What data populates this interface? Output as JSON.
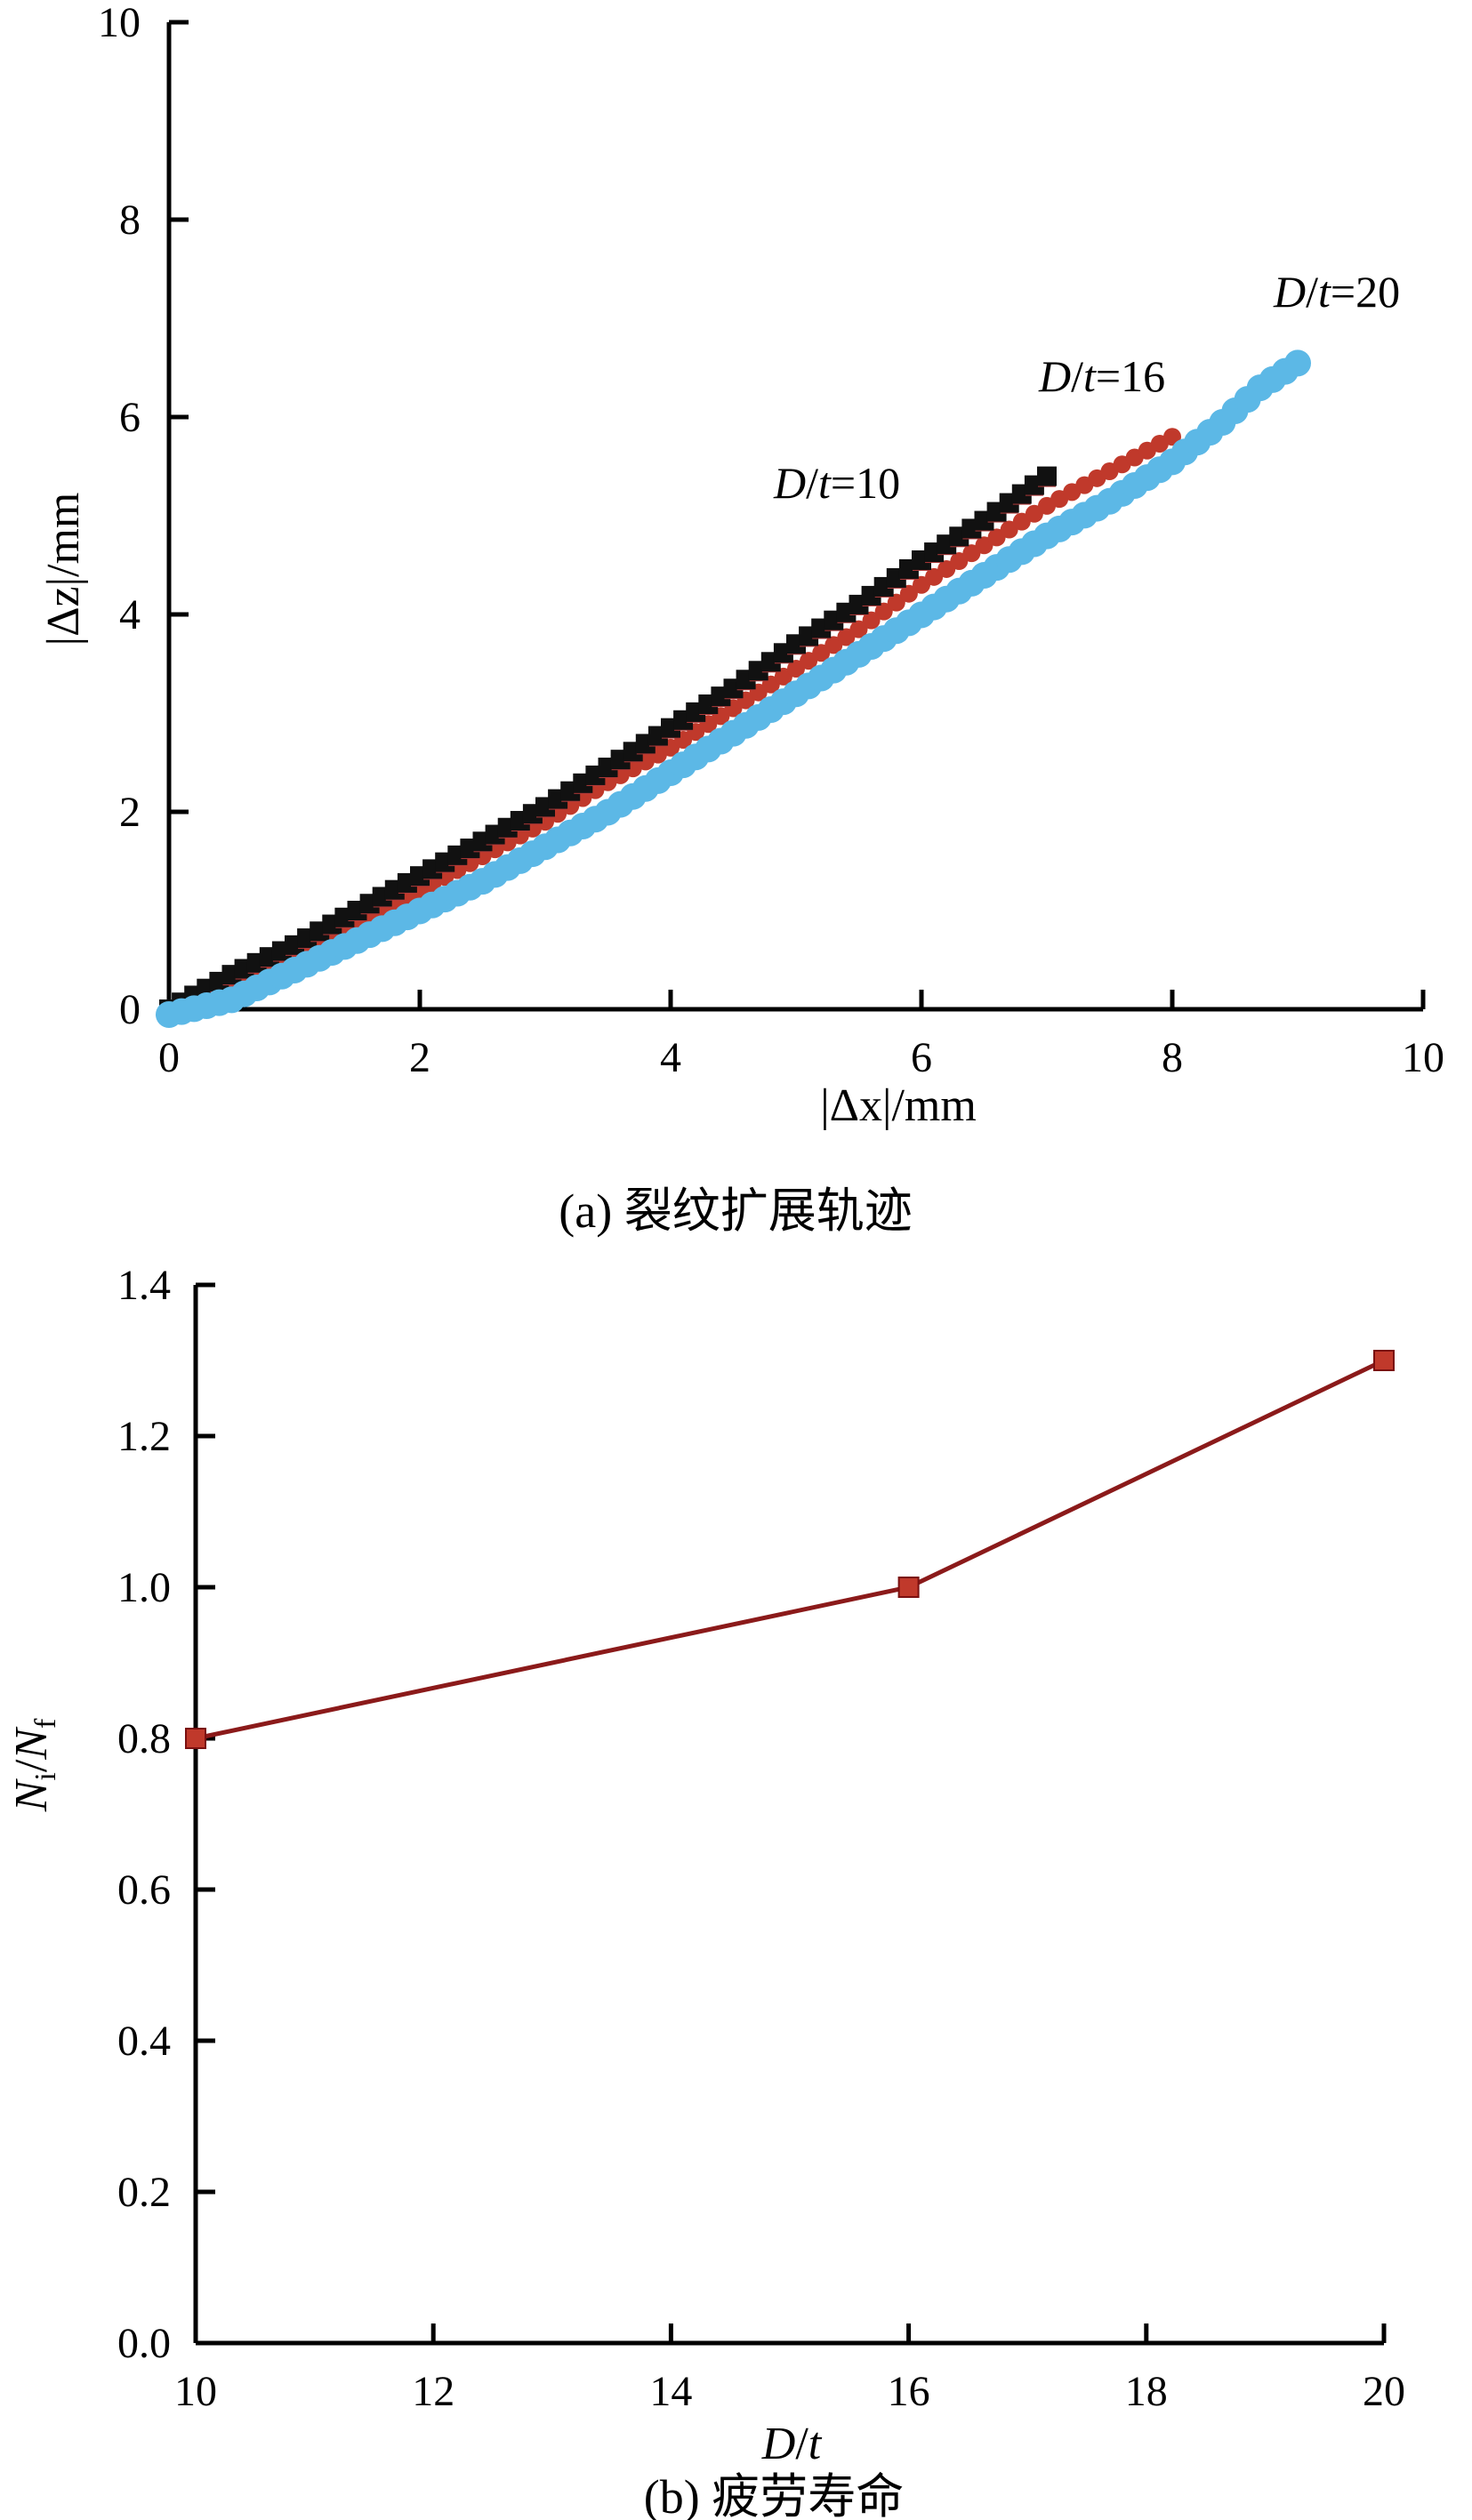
{
  "chart_data": [
    {
      "type": "scatter",
      "title": "",
      "caption": "(a) 裂纹扩展轨迹",
      "xlabel": "|Δx|/mm",
      "ylabel": "|Δz|/mm",
      "xlim": [
        0,
        10
      ],
      "ylim": [
        0,
        10
      ],
      "xticks": [
        "0",
        "2",
        "4",
        "6",
        "8",
        "10"
      ],
      "yticks": [
        "0",
        "2",
        "4",
        "6",
        "8",
        "10"
      ],
      "grid": false,
      "series": [
        {
          "name": "D/t=10",
          "label_parts": {
            "a": "D",
            "b": "/",
            "c": "t",
            "d": "=10"
          },
          "color": "#111111",
          "secondary_color": "#b23a3a",
          "marker": "square",
          "x": [
            0,
            0.5,
            1,
            1.5,
            2,
            2.5,
            3,
            3.5,
            4,
            4.5,
            5,
            5.5,
            6,
            6.5,
            7
          ],
          "y": [
            0,
            0.35,
            0.65,
            1.0,
            1.35,
            1.7,
            2.05,
            2.45,
            2.85,
            3.25,
            3.7,
            4.1,
            4.55,
            4.95,
            5.4
          ]
        },
        {
          "name": "D/t=16",
          "label_parts": {
            "a": "D",
            "b": "/",
            "c": "t",
            "d": "=16"
          },
          "color": "#c0392b",
          "marker": "circle",
          "x": [
            0,
            0.5,
            1,
            1.5,
            2,
            2.5,
            3,
            3.5,
            4,
            4.5,
            5,
            5.5,
            6,
            6.5,
            7,
            7.5,
            8
          ],
          "y": [
            0,
            0.3,
            0.6,
            0.9,
            1.2,
            1.55,
            1.9,
            2.3,
            2.65,
            3.05,
            3.45,
            3.85,
            4.3,
            4.7,
            5.1,
            5.45,
            5.8
          ]
        },
        {
          "name": "D/t=20",
          "label_parts": {
            "a": "D",
            "b": "/",
            "c": "t",
            "d": "=20"
          },
          "color": "#5cb8e6",
          "marker": "circle",
          "x": [
            0,
            0.5,
            1,
            1.5,
            2,
            2.5,
            3,
            3.5,
            4,
            4.5,
            5,
            5.5,
            6,
            6.5,
            7,
            7.5,
            8,
            8.4,
            8.7,
            9
          ],
          "y": [
            0,
            0.15,
            0.45,
            0.75,
            1.05,
            1.35,
            1.7,
            2.05,
            2.45,
            2.85,
            3.25,
            3.65,
            4.05,
            4.45,
            4.85,
            5.2,
            5.6,
            6.0,
            6.35,
            6.6
          ]
        }
      ]
    },
    {
      "type": "line",
      "title": "",
      "caption": "(b) 疲劳寿命",
      "xlabel_parts": {
        "a": "D",
        "b": "/",
        "c": "t"
      },
      "ylabel_parts": {
        "n1": "N",
        "s1": "i",
        "slash": "/",
        "n2": "N",
        "s2": "f"
      },
      "xlim": [
        10,
        20
      ],
      "ylim": [
        0.0,
        1.4
      ],
      "xticks": [
        "10",
        "12",
        "14",
        "16",
        "18",
        "20"
      ],
      "yticks": [
        "0.0",
        "0.2",
        "0.4",
        "0.6",
        "0.8",
        "1.0",
        "1.2",
        "1.4"
      ],
      "grid": false,
      "series": [
        {
          "color": "#8b1a1a",
          "marker_color": "#c0392b",
          "marker": "square",
          "x": [
            10,
            16,
            20
          ],
          "y": [
            0.8,
            1.0,
            1.3
          ]
        }
      ]
    }
  ]
}
